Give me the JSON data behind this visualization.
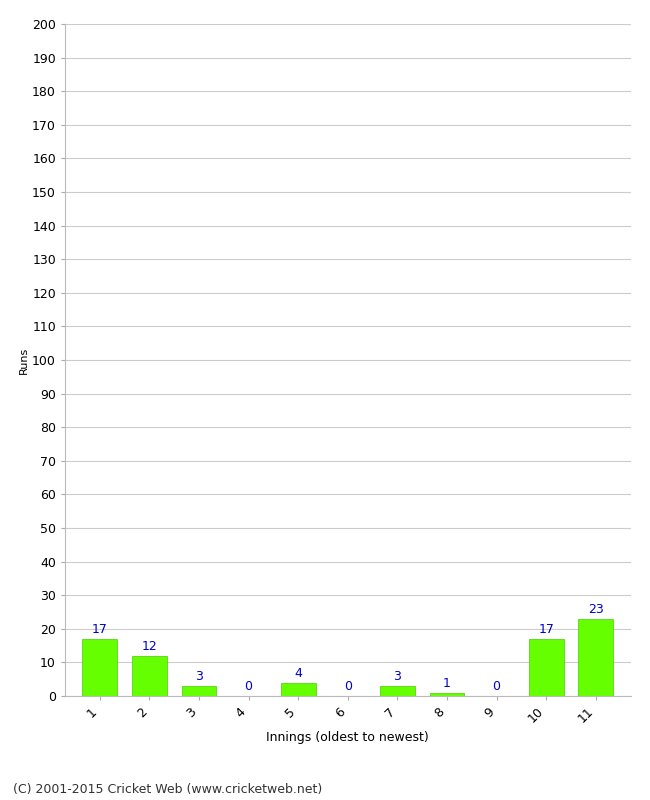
{
  "categories": [
    "1",
    "2",
    "3",
    "4",
    "5",
    "6",
    "7",
    "8",
    "9",
    "10",
    "11"
  ],
  "values": [
    17,
    12,
    3,
    0,
    4,
    0,
    3,
    1,
    0,
    17,
    23
  ],
  "bar_color": "#66ff00",
  "bar_edge_color": "#44cc00",
  "label_color": "#0000cc",
  "ylabel": "Runs",
  "xlabel": "Innings (oldest to newest)",
  "ylim": [
    0,
    200
  ],
  "yticks": [
    0,
    10,
    20,
    30,
    40,
    50,
    60,
    70,
    80,
    90,
    100,
    110,
    120,
    130,
    140,
    150,
    160,
    170,
    180,
    190,
    200
  ],
  "footer": "(C) 2001-2015 Cricket Web (www.cricketweb.net)",
  "background_color": "#ffffff",
  "grid_color": "#cccccc",
  "tick_fontsize": 9,
  "label_fontsize": 9,
  "ylabel_fontsize": 8,
  "xlabel_fontsize": 9,
  "footer_fontsize": 9,
  "value_label_fontsize": 9
}
